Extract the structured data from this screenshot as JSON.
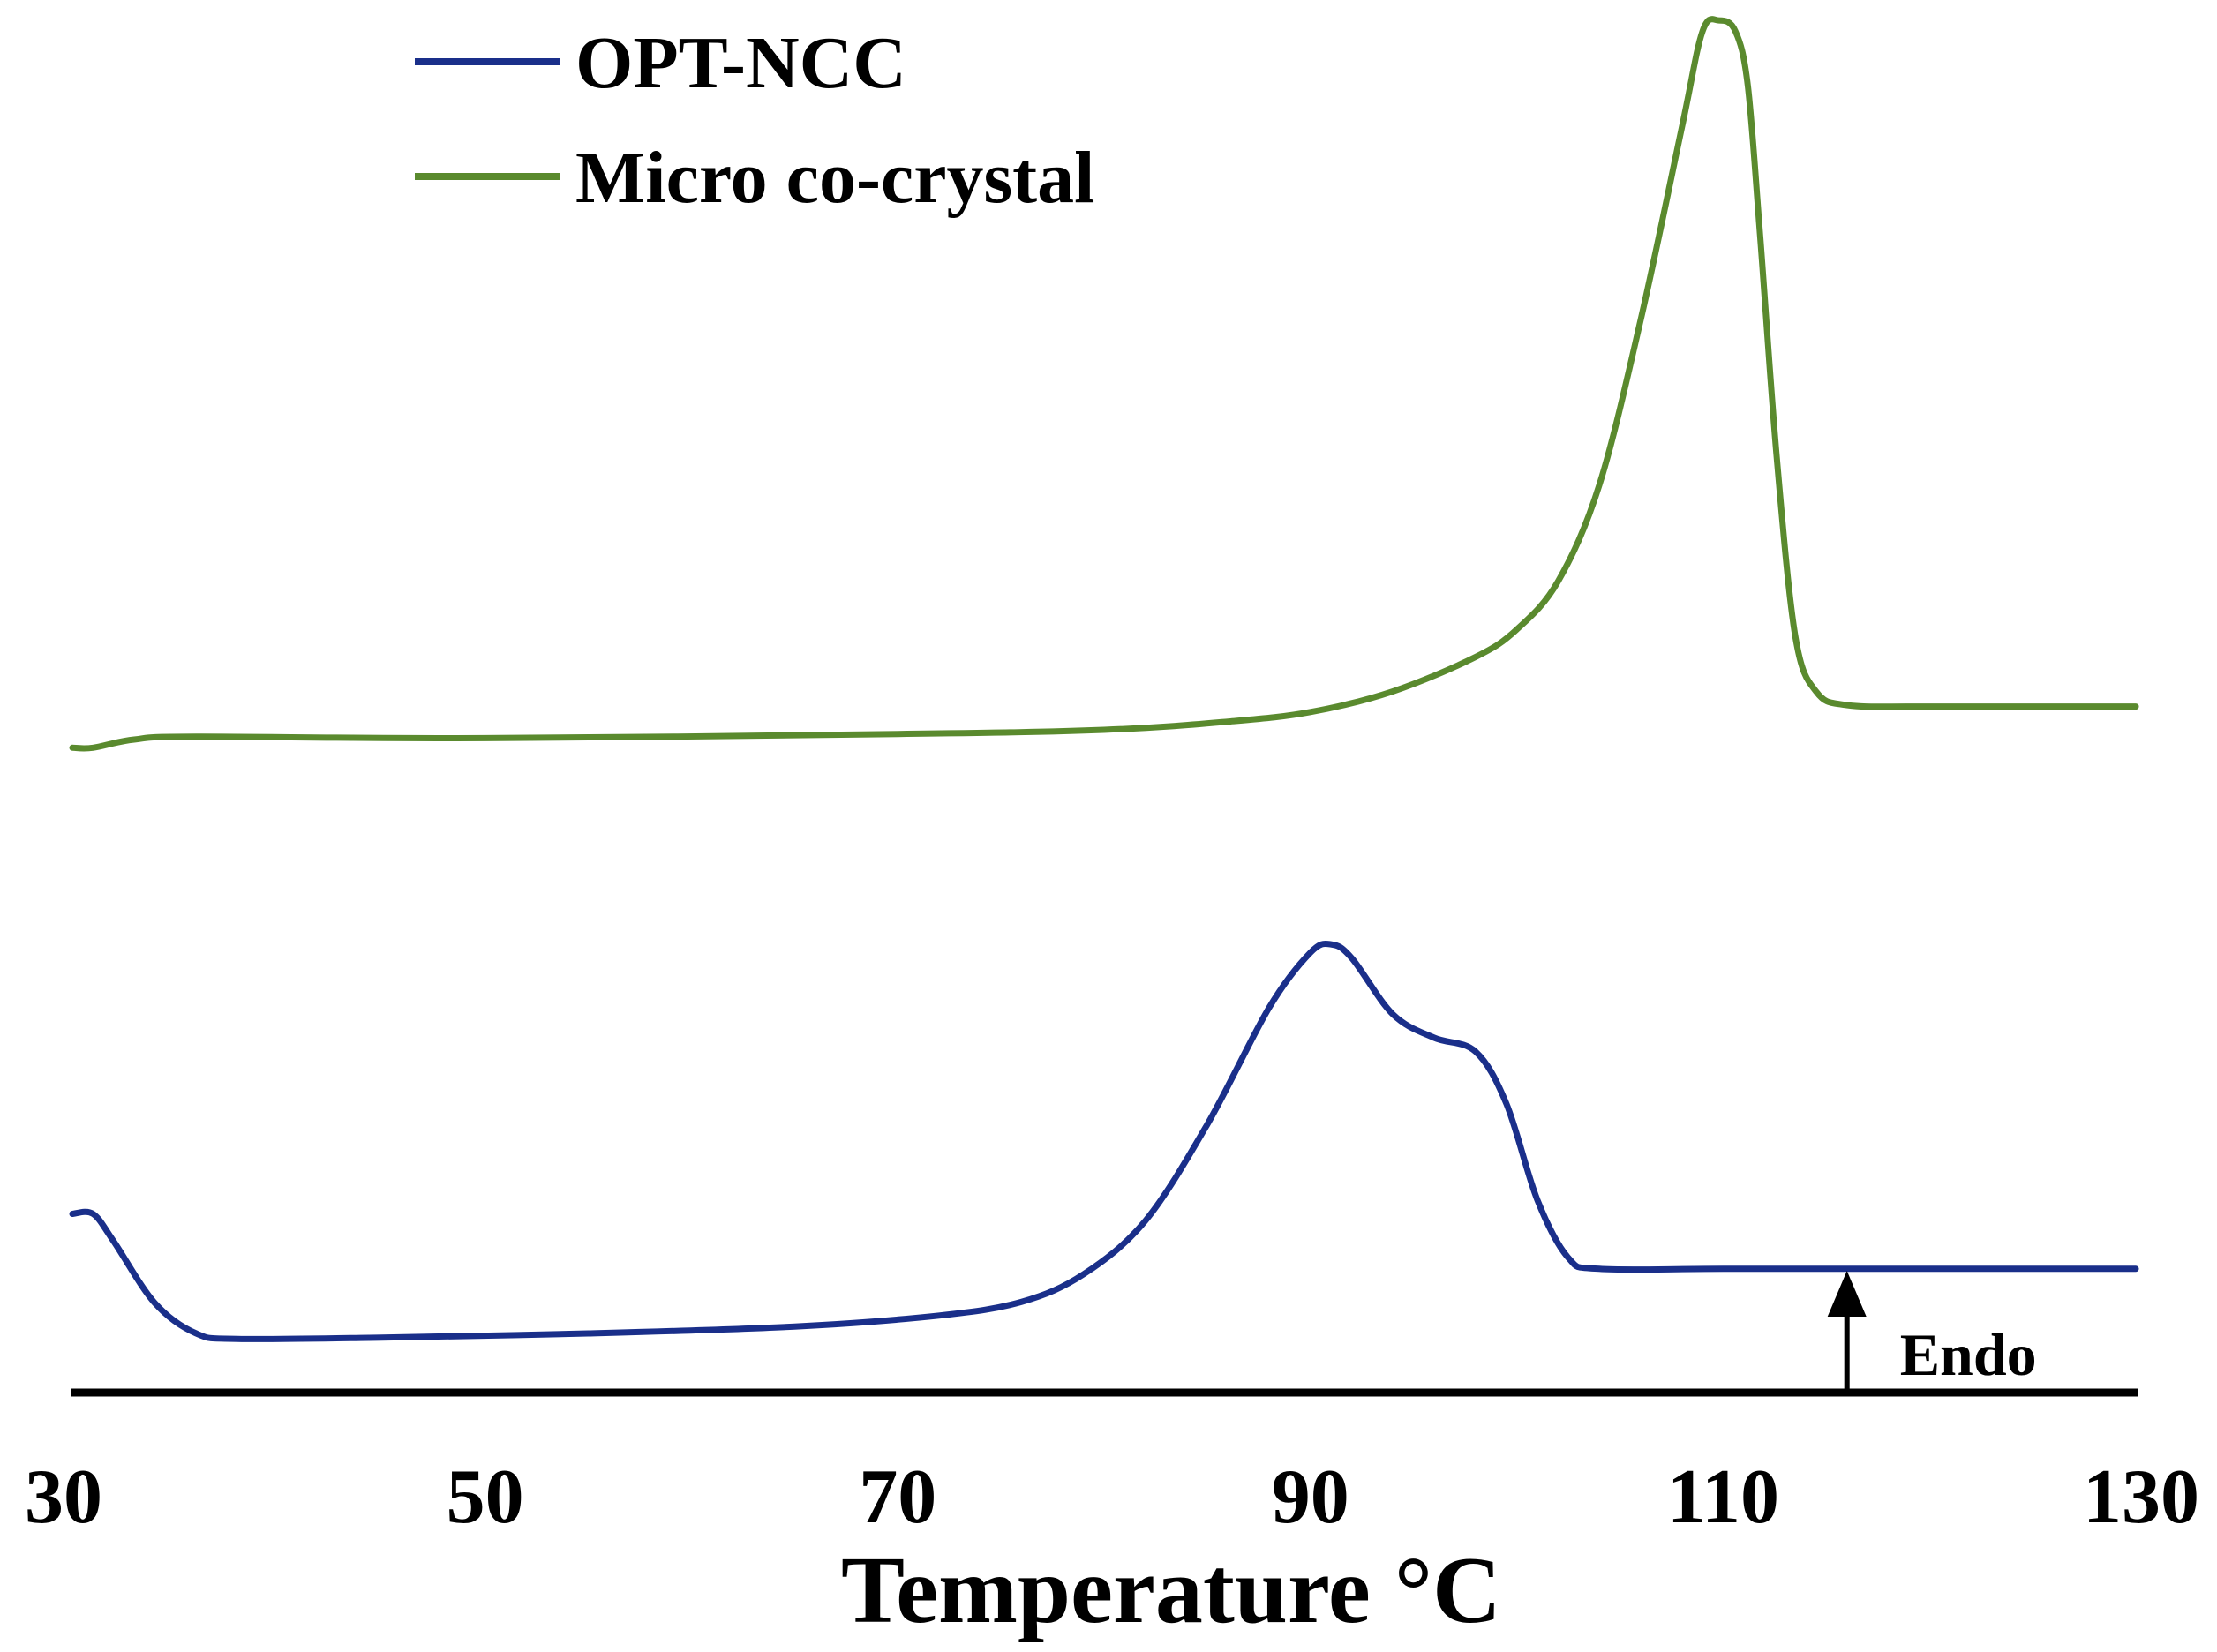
{
  "chart_data": {
    "type": "line",
    "title": "",
    "xlabel": "Temperature °C",
    "ylabel": "",
    "xlim": [
      30,
      130
    ],
    "ylim": [
      0,
      100
    ],
    "x_ticks": [
      30,
      50,
      70,
      90,
      110,
      130
    ],
    "grid": false,
    "legend_position": "top-left",
    "annotation": {
      "label": "Endo",
      "x": 116,
      "direction": "up"
    },
    "series": [
      {
        "name": "OPT-NCC",
        "color": "#1a2f8a",
        "points": [
          [
            30,
            13.0
          ],
          [
            31,
            13.0
          ],
          [
            32,
            11.0
          ],
          [
            34,
            6.5
          ],
          [
            36,
            4.3
          ],
          [
            38,
            3.9
          ],
          [
            45,
            4.0
          ],
          [
            55,
            4.3
          ],
          [
            65,
            4.8
          ],
          [
            72,
            5.6
          ],
          [
            76,
            6.6
          ],
          [
            79,
            8.6
          ],
          [
            82,
            12.5
          ],
          [
            85,
            19.5
          ],
          [
            88,
            28.0
          ],
          [
            90,
            32.0
          ],
          [
            91,
            32.6
          ],
          [
            92,
            31.6
          ],
          [
            94,
            27.5
          ],
          [
            96,
            25.8
          ],
          [
            98,
            24.8
          ],
          [
            99.5,
            21.0
          ],
          [
            101,
            14.0
          ],
          [
            102.5,
            9.8
          ],
          [
            104,
            9.0
          ],
          [
            110,
            9.0
          ],
          [
            120,
            9.0
          ],
          [
            130,
            9.0
          ]
        ]
      },
      {
        "name": "Micro co-crystal",
        "color": "#5a8a2e",
        "points": [
          [
            30,
            46.9
          ],
          [
            31,
            46.9
          ],
          [
            33,
            47.5
          ],
          [
            36,
            47.7
          ],
          [
            50,
            47.6
          ],
          [
            70,
            47.9
          ],
          [
            80,
            48.2
          ],
          [
            86,
            48.8
          ],
          [
            90,
            49.5
          ],
          [
            94,
            51.0
          ],
          [
            98,
            53.5
          ],
          [
            100,
            55.5
          ],
          [
            102,
            59.0
          ],
          [
            104,
            66.0
          ],
          [
            106,
            78.0
          ],
          [
            108,
            92.0
          ],
          [
            109,
            99.0
          ],
          [
            109.8,
            99.8
          ],
          [
            110.6,
            99.0
          ],
          [
            111.2,
            95.0
          ],
          [
            111.8,
            84.0
          ],
          [
            112.6,
            68.0
          ],
          [
            113.5,
            55.0
          ],
          [
            114.5,
            51.0
          ],
          [
            116,
            50.0
          ],
          [
            120,
            49.9
          ],
          [
            130,
            49.9
          ]
        ]
      }
    ]
  }
}
